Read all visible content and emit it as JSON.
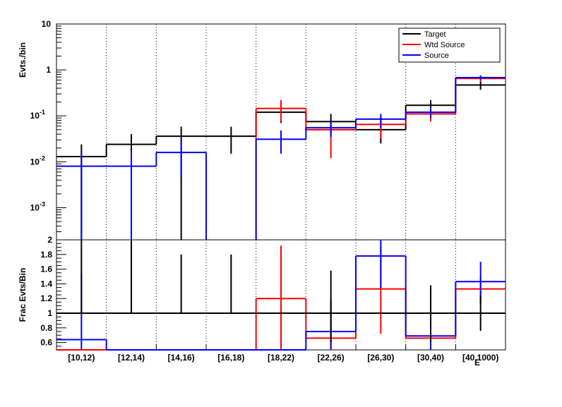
{
  "chart_data": [
    {
      "type": "histogram",
      "panel": "top",
      "ylabel": "Evts./bin",
      "yscale": "log",
      "ylim": [
        0.0002,
        10
      ],
      "categories": [
        "[10,12)",
        "[12,14)",
        "[14,16)",
        "[16,18)",
        "[18,22)",
        "[22,26)",
        "[26,30)",
        "[30,40)",
        "[40,1000)"
      ],
      "legend": {
        "position": "top-right",
        "entries": [
          "Target",
          "Wtd Source",
          "Source"
        ]
      },
      "series": [
        {
          "name": "Target",
          "color": "#000000",
          "values": [
            0.013,
            0.024,
            0.036,
            0.036,
            0.12,
            0.075,
            0.05,
            0.17,
            0.47
          ],
          "err_low": [
            2e-05,
            2e-05,
            2e-05,
            0.015,
            0.07,
            0.04,
            0.025,
            0.11,
            0.37
          ],
          "err_high": [
            0.024,
            0.04,
            0.058,
            0.058,
            0.18,
            0.11,
            0.08,
            0.22,
            0.57
          ]
        },
        {
          "name": "Wtd Source",
          "color": "#ff0000",
          "values": [
            null,
            null,
            null,
            null,
            0.145,
            0.05,
            0.065,
            0.11,
            0.65
          ],
          "err_low": [
            null,
            null,
            null,
            null,
            0.075,
            0.012,
            0.032,
            0.075,
            0.56
          ],
          "err_high": [
            null,
            null,
            null,
            null,
            0.22,
            0.075,
            0.095,
            0.14,
            0.74
          ]
        },
        {
          "name": "Source",
          "color": "#0000ff",
          "values": [
            0.008,
            0.008,
            0.016,
            null,
            0.031,
            0.055,
            0.085,
            0.12,
            0.68
          ],
          "err_low": [
            2e-05,
            2e-05,
            0.0045,
            null,
            0.015,
            0.035,
            0.055,
            0.09,
            0.6
          ],
          "err_high": [
            0.016,
            0.016,
            0.03,
            null,
            0.048,
            0.075,
            0.11,
            0.15,
            0.76
          ]
        }
      ]
    },
    {
      "type": "histogram",
      "panel": "bottom",
      "ylabel": "Frac Evts/Bin",
      "xlabel": "E",
      "ylim": [
        0.5,
        2
      ],
      "categories": [
        "[10,12)",
        "[12,14)",
        "[14,16)",
        "[16,18)",
        "[18,22)",
        "[22,26)",
        "[26,30)",
        "[30,40)",
        "[40,1000)"
      ],
      "series": [
        {
          "name": "Target",
          "color": "#000000",
          "values": [
            1,
            1,
            1,
            1,
            1,
            1,
            1,
            1,
            1
          ],
          "err_low": [
            null,
            null,
            null,
            null,
            null,
            0.6,
            null,
            0.6,
            0.76
          ],
          "err_high": [
            2,
            2,
            1.8,
            1.8,
            null,
            1.58,
            null,
            1.38,
            1.24
          ]
        },
        {
          "name": "Wtd Source",
          "color": "#ff0000",
          "values": [
            0.5,
            0.5,
            0.5,
            0.5,
            1.2,
            0.66,
            1.33,
            0.66,
            1.33
          ],
          "err_low": [
            null,
            null,
            null,
            null,
            0.5,
            0.5,
            0.72,
            0.5,
            1.12
          ],
          "err_high": [
            null,
            null,
            null,
            null,
            1.92,
            1.2,
            1.92,
            0.96,
            1.5
          ]
        },
        {
          "name": "Source",
          "color": "#0000ff",
          "values": [
            0.64,
            0.5,
            0.5,
            0.5,
            0.5,
            0.75,
            1.78,
            0.69,
            1.43
          ],
          "err_low": [
            0.5,
            null,
            null,
            null,
            null,
            0.5,
            1.34,
            0.5,
            1.16
          ],
          "err_high": [
            1.55,
            null,
            null,
            null,
            null,
            1.16,
            2,
            0.98,
            1.7
          ]
        }
      ]
    }
  ],
  "top_axis": {
    "tick_labels": [
      "10",
      "1",
      "10^-1",
      "10^-2",
      "10^-3"
    ],
    "ylabel": "Evts./bin"
  },
  "bottom_axis": {
    "tick_labels": [
      "2",
      "1.8",
      "1.6",
      "1.4",
      "1.2",
      "1",
      "0.8",
      "0.6"
    ],
    "ylabel": "Frac Evts/Bin",
    "xlabel": "E"
  }
}
